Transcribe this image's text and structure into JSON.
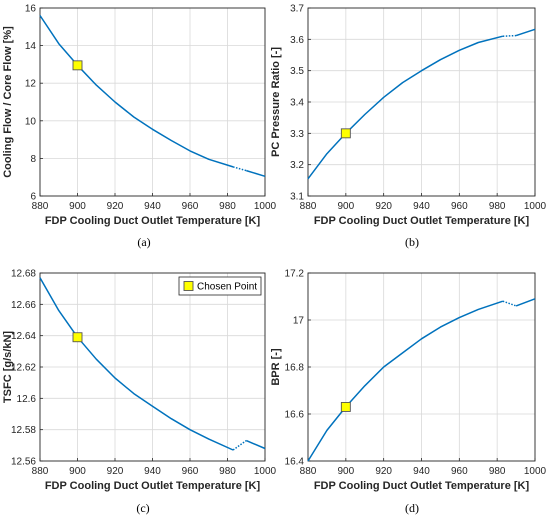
{
  "figure": {
    "captions": [
      "(a)",
      "(b)",
      "(c)",
      "(d)"
    ]
  },
  "colors": {
    "line": "#0072BD",
    "marker_fill": "#FFFF00",
    "marker_edge": "#555555",
    "grid": "#d9d9d9",
    "axis": "#262626"
  },
  "chart_data": [
    {
      "type": "line",
      "caption": "(a)",
      "xlabel": "FDP Cooling Duct Outlet Temperature [K]",
      "ylabel": "Cooling Flow / Core Flow [%]",
      "xlim": [
        880,
        1000
      ],
      "ylim": [
        6,
        16
      ],
      "xticks": [
        880,
        900,
        920,
        940,
        960,
        980,
        1000
      ],
      "yticks": [
        6,
        8,
        10,
        12,
        14,
        16
      ],
      "grid": true,
      "x": [
        880,
        890,
        900,
        910,
        920,
        930,
        940,
        950,
        960,
        970,
        983,
        990,
        1000
      ],
      "y": [
        15.6,
        14.1,
        12.95,
        11.9,
        11.0,
        10.2,
        9.55,
        8.95,
        8.4,
        7.95,
        7.55,
        7.35,
        7.05
      ],
      "dotted_from_x": 983,
      "dotted_to_x": 990,
      "chosen_point": {
        "x": 900,
        "y": 12.95
      }
    },
    {
      "type": "line",
      "caption": "(b)",
      "xlabel": "FDP Cooling Duct Outlet Temperature [K]",
      "ylabel": "PC Pressure Ratio [-]",
      "xlim": [
        880,
        1000
      ],
      "ylim": [
        3.1,
        3.7
      ],
      "xticks": [
        880,
        900,
        920,
        940,
        960,
        980,
        1000
      ],
      "yticks": [
        3.1,
        3.2,
        3.3,
        3.4,
        3.5,
        3.6,
        3.7
      ],
      "grid": true,
      "x": [
        880,
        890,
        900,
        910,
        920,
        930,
        940,
        950,
        960,
        970,
        983,
        990,
        1000
      ],
      "y": [
        3.155,
        3.235,
        3.3,
        3.36,
        3.415,
        3.462,
        3.5,
        3.535,
        3.565,
        3.59,
        3.61,
        3.612,
        3.632
      ],
      "dotted_from_x": 983,
      "dotted_to_x": 990,
      "chosen_point": {
        "x": 900,
        "y": 3.3
      }
    },
    {
      "type": "line",
      "caption": "(c)",
      "xlabel": "FDP Cooling Duct Outlet Temperature [K]",
      "ylabel": "TSFC [g/s/kN]",
      "xlim": [
        880,
        1000
      ],
      "ylim": [
        12.56,
        12.68
      ],
      "xticks": [
        880,
        900,
        920,
        940,
        960,
        980,
        1000
      ],
      "yticks": [
        12.56,
        12.58,
        12.6,
        12.62,
        12.64,
        12.66,
        12.68
      ],
      "ytick_labels": [
        "12.56",
        "12.58",
        "12.6",
        "12.62",
        "12.64",
        "12.66",
        "12.68"
      ],
      "grid": true,
      "legend": {
        "label": "Chosen Point",
        "position": "top-right"
      },
      "x": [
        880,
        890,
        900,
        910,
        920,
        930,
        940,
        950,
        960,
        970,
        983,
        990,
        1000
      ],
      "y": [
        12.677,
        12.656,
        12.639,
        12.625,
        12.613,
        12.603,
        12.595,
        12.587,
        12.58,
        12.574,
        12.567,
        12.573,
        12.568
      ],
      "dotted_from_x": 983,
      "dotted_to_x": 990,
      "chosen_point": {
        "x": 900,
        "y": 12.639
      }
    },
    {
      "type": "line",
      "caption": "(d)",
      "xlabel": "FDP Cooling Duct Outlet Temperature [K]",
      "ylabel": "BPR [-]",
      "xlim": [
        880,
        1000
      ],
      "ylim": [
        16.4,
        17.2
      ],
      "xticks": [
        880,
        900,
        920,
        940,
        960,
        980,
        1000
      ],
      "yticks": [
        16.4,
        16.6,
        16.8,
        17.0,
        17.2
      ],
      "ytick_labels": [
        "16.4",
        "16.6",
        "16.8",
        "17",
        "17.2"
      ],
      "grid": true,
      "x": [
        880,
        890,
        900,
        910,
        920,
        930,
        940,
        950,
        960,
        970,
        983,
        990,
        1000
      ],
      "y": [
        16.4,
        16.53,
        16.63,
        16.72,
        16.8,
        16.86,
        16.92,
        16.97,
        17.01,
        17.045,
        17.08,
        17.06,
        17.09
      ],
      "dotted_from_x": 983,
      "dotted_to_x": 990,
      "chosen_point": {
        "x": 900,
        "y": 16.63
      }
    }
  ]
}
